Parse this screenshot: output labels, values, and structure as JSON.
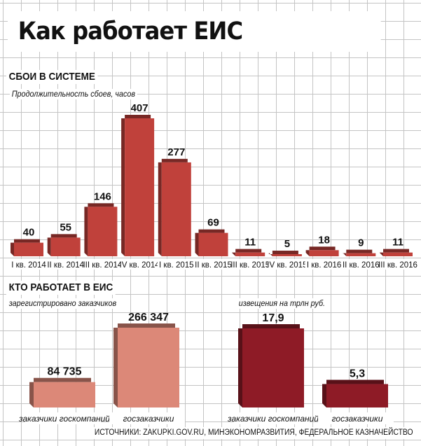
{
  "header": {
    "title": "Как работает ЕИС"
  },
  "section1": {
    "heading": "СБОИ В СИСТЕМЕ",
    "sublabel": "Продолжительность сбоев, часов"
  },
  "section2": {
    "heading": "КТО РАБОТАЕТ В ЕИС",
    "left_label": "зарегистрировано заказчиков",
    "right_label": "извещения на трлн руб."
  },
  "colors": {
    "bar1": "#c0413b",
    "bar2_light": "#dc8878",
    "bar2_dark": "#8e1b26"
  },
  "source": "ИСТОЧНИКИ: ZAKUPKI.GOV.RU, МИНЭКОНОМРАЗВИТИЯ, ФЕДЕРАЛЬНОЕ КАЗНАЧЕЙСТВО",
  "chart_data": [
    {
      "type": "bar",
      "title": "СБОИ В СИСТЕМЕ",
      "ylabel": "Продолжительность сбоев, часов",
      "categories": [
        "I кв. 2014",
        "II кв. 2014",
        "III кв. 2014",
        "IV кв. 2014",
        "I кв. 2015",
        "II кв. 2015",
        "III кв. 2015",
        "IV кв. 2015",
        "I кв. 2016",
        "II кв. 2016",
        "III кв. 2016"
      ],
      "values": [
        40,
        55,
        146,
        407,
        277,
        69,
        11,
        5,
        18,
        9,
        11
      ],
      "labels": [
        "40",
        "55",
        "146",
        "407",
        "277",
        "69",
        "11",
        "5",
        "18",
        "9",
        "11"
      ],
      "ylim": [
        0,
        407
      ]
    },
    {
      "type": "bar",
      "title": "зарегистрировано заказчиков",
      "categories": [
        "заказчики госкомпаний",
        "госзаказчики"
      ],
      "values": [
        84735,
        266347
      ],
      "labels": [
        "84 735",
        "266 347"
      ],
      "ylim": [
        0,
        266347
      ]
    },
    {
      "type": "bar",
      "title": "извещения на трлн руб.",
      "categories": [
        "заказчики госкомпаний",
        "госзаказчики"
      ],
      "values": [
        17.9,
        5.3
      ],
      "labels": [
        "17,9",
        "5,3"
      ],
      "ylim": [
        0,
        17.9
      ]
    }
  ]
}
